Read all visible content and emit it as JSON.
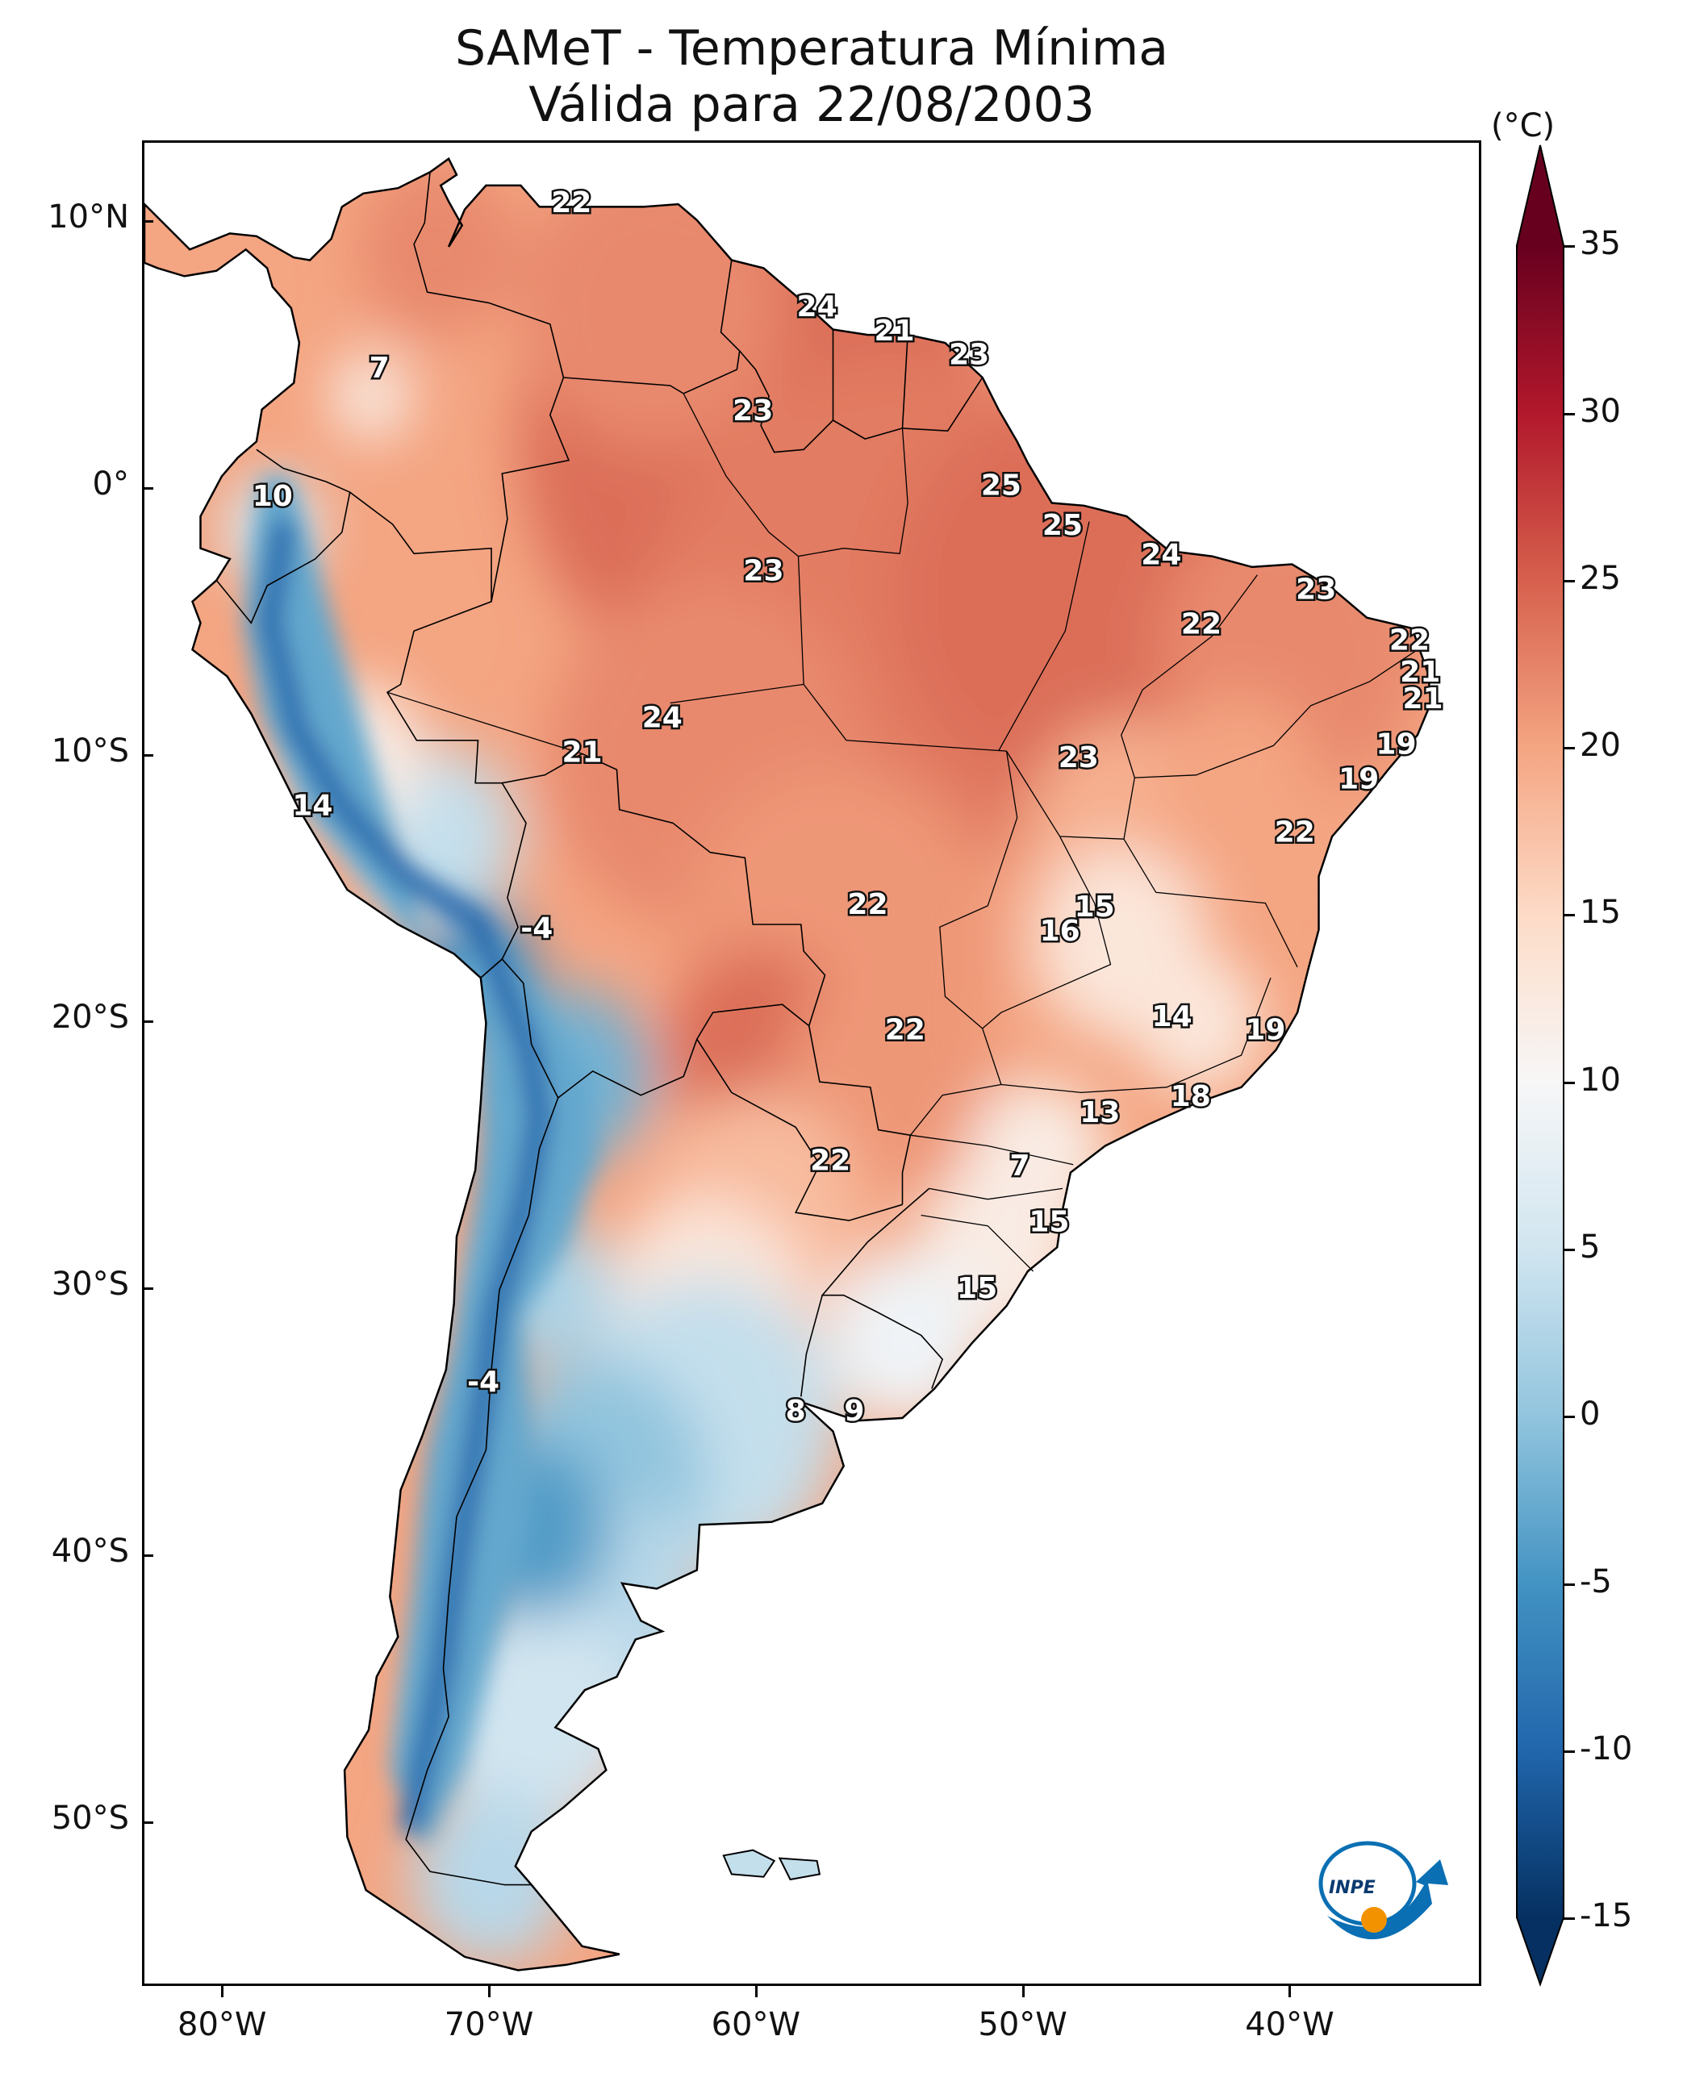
{
  "title": {
    "line1": "SAMeT - Temperatura Mínima",
    "line2": "Válida para 22/08/2003"
  },
  "axes": {
    "y_ticks": [
      {
        "label": "10°N",
        "lat": 10
      },
      {
        "label": "0°",
        "lat": 0
      },
      {
        "label": "10°S",
        "lat": -10
      },
      {
        "label": "20°S",
        "lat": -20
      },
      {
        "label": "30°S",
        "lat": -30
      },
      {
        "label": "40°S",
        "lat": -40
      },
      {
        "label": "50°S",
        "lat": -50
      }
    ],
    "x_ticks": [
      {
        "label": "80°W",
        "lon": -80
      },
      {
        "label": "70°W",
        "lon": -70
      },
      {
        "label": "60°W",
        "lon": -60
      },
      {
        "label": "50°W",
        "lon": -50
      },
      {
        "label": "40°W",
        "lon": -40
      }
    ],
    "lon_range": [
      -83,
      -33
    ],
    "lat_range": [
      -56,
      13
    ]
  },
  "colorbar": {
    "unit": "(°C)",
    "min": -17,
    "max": 38,
    "ticks": [
      "35",
      "30",
      "25",
      "20",
      "15",
      "10",
      "5",
      "0",
      "-5",
      "-10",
      "-15"
    ],
    "tick_values": [
      35,
      30,
      25,
      20,
      15,
      10,
      5,
      0,
      -5,
      -10,
      -15
    ],
    "colors": [
      "#053061",
      "#2166ac",
      "#4393c3",
      "#92c5de",
      "#d1e5f0",
      "#f7f7f7",
      "#fddbc7",
      "#f4a582",
      "#d6604d",
      "#b2182b",
      "#67001f"
    ]
  },
  "station_labels": [
    {
      "text": "22",
      "lon": -67,
      "lat": 10.7
    },
    {
      "text": "24",
      "lon": -57.8,
      "lat": 6.8
    },
    {
      "text": "21",
      "lon": -54.9,
      "lat": 5.9
    },
    {
      "text": "23",
      "lon": -52.1,
      "lat": 5.0
    },
    {
      "text": "7",
      "lon": -74.2,
      "lat": 4.5
    },
    {
      "text": "23",
      "lon": -60.2,
      "lat": 2.9
    },
    {
      "text": "10",
      "lon": -78.2,
      "lat": -0.3
    },
    {
      "text": "25",
      "lon": -50.9,
      "lat": 0.1
    },
    {
      "text": "25",
      "lon": -48.6,
      "lat": -1.4
    },
    {
      "text": "24",
      "lon": -44.9,
      "lat": -2.5
    },
    {
      "text": "23",
      "lon": -59.8,
      "lat": -3.1
    },
    {
      "text": "23",
      "lon": -39.1,
      "lat": -3.8
    },
    {
      "text": "22",
      "lon": -43.4,
      "lat": -5.1
    },
    {
      "text": "22",
      "lon": -35.6,
      "lat": -5.7
    },
    {
      "text": "21",
      "lon": -35.2,
      "lat": -6.9
    },
    {
      "text": "21",
      "lon": -35.1,
      "lat": -7.9
    },
    {
      "text": "24",
      "lon": -63.6,
      "lat": -8.6
    },
    {
      "text": "19",
      "lon": -36.1,
      "lat": -9.6
    },
    {
      "text": "21",
      "lon": -66.6,
      "lat": -9.9
    },
    {
      "text": "23",
      "lon": -48.0,
      "lat": -10.1
    },
    {
      "text": "19",
      "lon": -37.5,
      "lat": -10.9
    },
    {
      "text": "14",
      "lon": -76.7,
      "lat": -11.9
    },
    {
      "text": "22",
      "lon": -39.9,
      "lat": -12.9
    },
    {
      "text": "22",
      "lon": -55.9,
      "lat": -15.6
    },
    {
      "text": "15",
      "lon": -47.4,
      "lat": -15.7
    },
    {
      "text": "16",
      "lon": -48.7,
      "lat": -16.6
    },
    {
      "text": "-4",
      "lon": -68.3,
      "lat": -16.5
    },
    {
      "text": "14",
      "lon": -44.5,
      "lat": -19.8
    },
    {
      "text": "19",
      "lon": -41.0,
      "lat": -20.3
    },
    {
      "text": "22",
      "lon": -54.5,
      "lat": -20.3
    },
    {
      "text": "18",
      "lon": -43.8,
      "lat": -22.8
    },
    {
      "text": "13",
      "lon": -47.2,
      "lat": -23.4
    },
    {
      "text": "22",
      "lon": -57.3,
      "lat": -25.2
    },
    {
      "text": "7",
      "lon": -50.2,
      "lat": -25.4
    },
    {
      "text": "15",
      "lon": -49.1,
      "lat": -27.5
    },
    {
      "text": "15",
      "lon": -51.8,
      "lat": -30.0
    },
    {
      "text": "-4",
      "lon": -70.3,
      "lat": -33.5
    },
    {
      "text": "8",
      "lon": -58.6,
      "lat": -34.6
    },
    {
      "text": "9",
      "lon": -56.4,
      "lat": -34.6
    }
  ],
  "logo": {
    "text": "INPE",
    "colors": {
      "blue": "#0a6fb3",
      "orange": "#f39200"
    }
  }
}
